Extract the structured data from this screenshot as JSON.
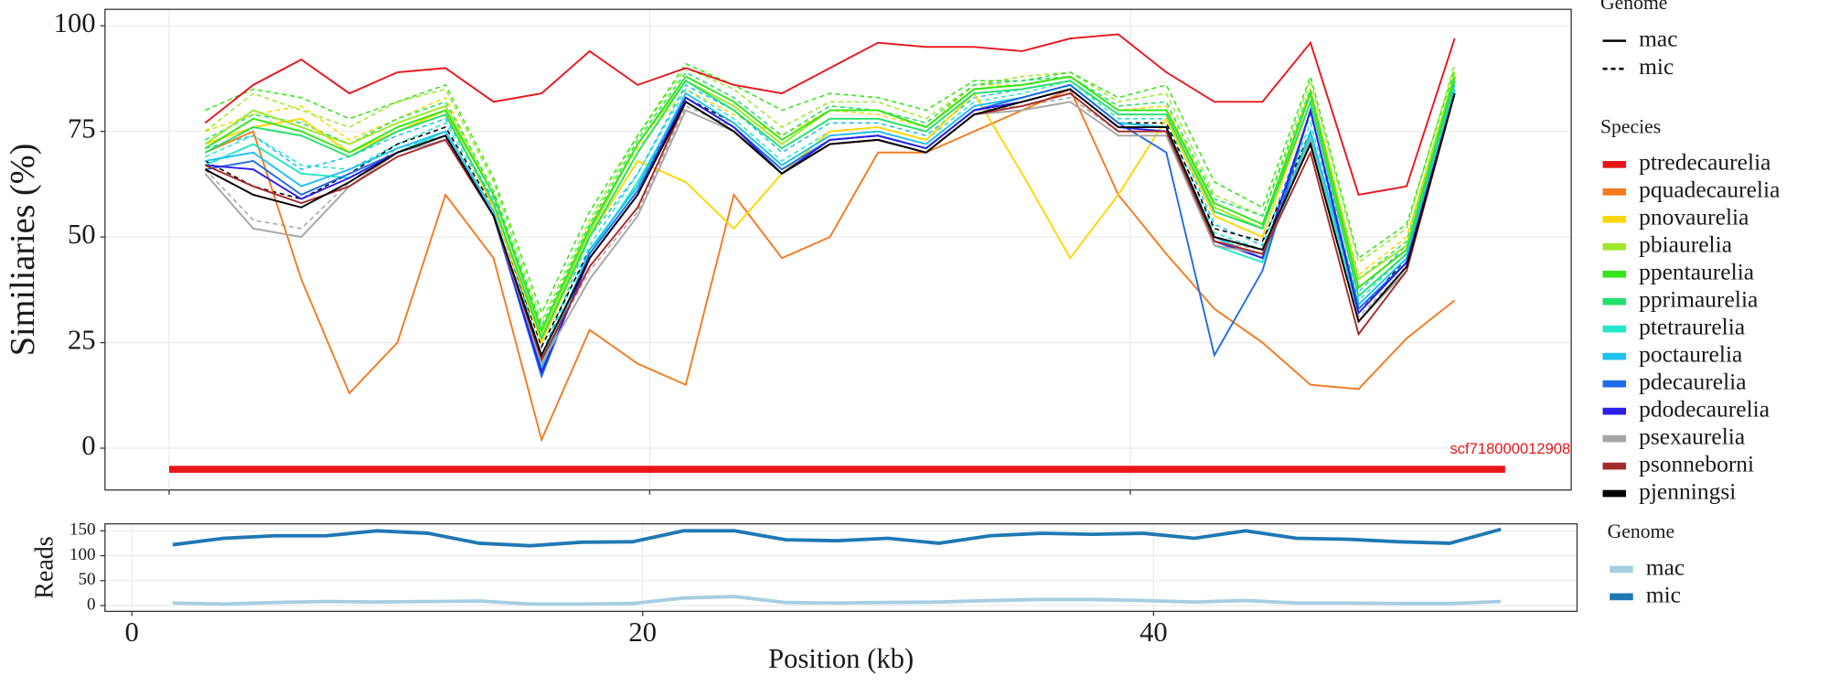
{
  "chart_data": [
    {
      "type": "line",
      "ylabel": "Similiaries (%)",
      "grid": true,
      "xlim": [
        -2.67,
        58.35
      ],
      "ylim": [
        -9.9,
        103.9
      ],
      "yticks": [
        0,
        25,
        50,
        75,
        100
      ],
      "xticks": [
        0,
        20,
        40
      ],
      "show_xtick_labels": false,
      "x": [
        1.5,
        3.5,
        5.5,
        7.5,
        9.5,
        11.5,
        13.5,
        15.5,
        17.5,
        19.5,
        21.5,
        23.5,
        25.5,
        27.5,
        29.5,
        31.5,
        33.5,
        35.5,
        37.5,
        39.5,
        41.5,
        43.5,
        45.5,
        47.5,
        49.5,
        51.5,
        53.5
      ],
      "genome_legend": {
        "title": "Genome",
        "labels": [
          "mac",
          "mic"
        ]
      },
      "legend_title": "Species",
      "annotation": {
        "label": "scf718000012908",
        "start": 0,
        "end": 55.6,
        "y": -5,
        "color": "#e8161b"
      },
      "series": [
        {
          "name": "ptredecaurelia",
          "color": "#e8161b",
          "values": [
            77,
            86,
            92,
            84,
            89,
            90,
            82,
            84,
            94,
            86,
            90,
            86,
            84,
            90,
            96,
            95,
            95,
            94,
            97,
            98,
            89,
            82,
            82,
            96,
            60,
            62,
            97
          ]
        },
        {
          "name": "pquadecaurelia",
          "color": "#f47a20",
          "values": [
            70,
            75,
            40,
            13,
            25,
            60,
            45,
            2,
            28,
            20,
            15,
            60,
            45,
            50,
            70,
            70,
            75,
            80,
            85,
            60,
            46,
            33,
            25,
            15,
            14,
            26,
            35
          ]
        },
        {
          "name": "pnovaurelia",
          "color": "#ffd700",
          "values": [
            72,
            76,
            78,
            70,
            75,
            80,
            57,
            25,
            50,
            68,
            63,
            52,
            65,
            75,
            76,
            73,
            84,
            65,
            45,
            60,
            78,
            55,
            50,
            82,
            38,
            47,
            87
          ],
          "values_mic": [
            75,
            79,
            81,
            73,
            78,
            83,
            60,
            28,
            53,
            71,
            85,
            79,
            74,
            80,
            79,
            76,
            86,
            86,
            88,
            80,
            81,
            58,
            53,
            85,
            41,
            50,
            89
          ]
        },
        {
          "name": "pbiaurelia",
          "color": "#9ee82b",
          "values": [
            72,
            80,
            76,
            72,
            77,
            81,
            60,
            27,
            51,
            72,
            87,
            81,
            72,
            80,
            80,
            76,
            85,
            86,
            88,
            80,
            80,
            57,
            52,
            84,
            40,
            48,
            89
          ],
          "values_mic": [
            75,
            84,
            80,
            76,
            82,
            85,
            63,
            30,
            54,
            74,
            90,
            85,
            76,
            82,
            82,
            78,
            86,
            88,
            89,
            82,
            84,
            60,
            55,
            87,
            44,
            52,
            91
          ]
        },
        {
          "name": "ppentaurelia",
          "color": "#33e51a",
          "values": [
            71,
            78,
            75,
            70,
            76,
            80,
            60,
            28,
            52,
            72,
            88,
            82,
            73,
            80,
            80,
            76,
            85,
            86,
            88,
            80,
            80,
            58,
            53,
            84,
            38,
            47,
            88
          ],
          "values_mic": [
            80,
            85,
            83,
            78,
            82,
            86,
            64,
            32,
            56,
            74,
            91,
            86,
            80,
            84,
            83,
            80,
            87,
            87,
            89,
            83,
            86,
            63,
            57,
            88,
            45,
            53,
            90
          ]
        },
        {
          "name": "pprimaurelia",
          "color": "#22e06a",
          "values": [
            70,
            76,
            74,
            69,
            75,
            79,
            58,
            26,
            50,
            70,
            87,
            80,
            71,
            78,
            78,
            75,
            84,
            85,
            87,
            79,
            79,
            56,
            52,
            82,
            36,
            46,
            87
          ],
          "values_mic": [
            73,
            79,
            77,
            72,
            78,
            82,
            61,
            29,
            53,
            73,
            89,
            83,
            74,
            81,
            80,
            77,
            86,
            87,
            88,
            81,
            82,
            59,
            55,
            85,
            40,
            49,
            89
          ]
        },
        {
          "name": "ptetraurelia",
          "color": "#22e8c8",
          "values": [
            67,
            72,
            65,
            64,
            70,
            75,
            56,
            20,
            46,
            63,
            83,
            76,
            66,
            73,
            74,
            71,
            80,
            83,
            86,
            77,
            76,
            48,
            44,
            74,
            32,
            44,
            85
          ],
          "values_mic": [
            69,
            74,
            67,
            66,
            72,
            77,
            58,
            22,
            48,
            65,
            85,
            78,
            68,
            75,
            76,
            73,
            82,
            84,
            87,
            78,
            78,
            51,
            47,
            77,
            35,
            46,
            86
          ]
        },
        {
          "name": "poctaurelia",
          "color": "#1ec0f0",
          "values": [
            68,
            70,
            62,
            66,
            71,
            75,
            56,
            19,
            47,
            62,
            84,
            77,
            67,
            74,
            75,
            72,
            81,
            83,
            86,
            77,
            76,
            50,
            45,
            75,
            34,
            45,
            85
          ],
          "values_mic": [
            71,
            74,
            66,
            69,
            74,
            78,
            59,
            22,
            50,
            65,
            86,
            80,
            70,
            77,
            77,
            74,
            83,
            85,
            87,
            79,
            79,
            53,
            48,
            79,
            37,
            48,
            86
          ]
        },
        {
          "name": "pdecaurelia",
          "color": "#1f6be8",
          "values": [
            66,
            68,
            60,
            65,
            70,
            74,
            55,
            17,
            46,
            61,
            83,
            76,
            66,
            73,
            74,
            71,
            80,
            83,
            86,
            77,
            70,
            22,
            42,
            80,
            33,
            44,
            84
          ]
        },
        {
          "name": "pdodecaurelia",
          "color": "#2a1ee8",
          "values": [
            67,
            66,
            59,
            64,
            70,
            74,
            55,
            18,
            45,
            60,
            83,
            76,
            65,
            73,
            74,
            71,
            80,
            82,
            85,
            76,
            75,
            49,
            45,
            80,
            32,
            44,
            84
          ]
        },
        {
          "name": "psexaurelia",
          "color": "#a6a6a6",
          "values": [
            65,
            52,
            50,
            62,
            70,
            73,
            55,
            20,
            40,
            55,
            80,
            75,
            65,
            72,
            73,
            70,
            79,
            80,
            82,
            74,
            74,
            48,
            46,
            73,
            30,
            42,
            84
          ],
          "values_mic": [
            66,
            54,
            52,
            63,
            71,
            74,
            56,
            21,
            42,
            56,
            81,
            76,
            66,
            73,
            74,
            71,
            80,
            81,
            83,
            75,
            75,
            49,
            47,
            75,
            31,
            43,
            84
          ]
        },
        {
          "name": "psonneborni",
          "color": "#a52a2a",
          "values": [
            67,
            62,
            58,
            62,
            69,
            73,
            55,
            21,
            43,
            57,
            82,
            75,
            65,
            72,
            73,
            70,
            79,
            81,
            84,
            75,
            75,
            49,
            46,
            70,
            27,
            42,
            84
          ]
        },
        {
          "name": "pjenningsi",
          "color": "#000000",
          "values": [
            66,
            60,
            57,
            63,
            70,
            74,
            55,
            22,
            45,
            60,
            82,
            75,
            65,
            72,
            73,
            70,
            79,
            82,
            85,
            76,
            76,
            50,
            47,
            72,
            30,
            43,
            84
          ],
          "values_mic": [
            68,
            62,
            59,
            65,
            72,
            76,
            57,
            24,
            47,
            62,
            83,
            77,
            67,
            74,
            75,
            72,
            81,
            83,
            86,
            77,
            77,
            52,
            49,
            75,
            32,
            45,
            85
          ]
        }
      ]
    },
    {
      "type": "line",
      "ylabel": "Reads",
      "xlabel": "Position (kb)",
      "grid": true,
      "xlim": [
        -1.05,
        56.58
      ],
      "ylim": [
        -11.7,
        164
      ],
      "yticks": [
        0,
        50,
        100,
        150
      ],
      "xticks": [
        0,
        20,
        40
      ],
      "show_xtick_labels": true,
      "x": [
        1.6,
        3.6,
        5.6,
        7.6,
        9.6,
        11.6,
        13.6,
        15.6,
        17.6,
        19.6,
        21.6,
        23.6,
        25.6,
        27.6,
        29.6,
        31.6,
        33.6,
        35.6,
        37.6,
        39.6,
        41.6,
        43.6,
        45.6,
        47.6,
        49.6,
        51.6,
        53.6
      ],
      "legend_title": "Genome",
      "series": [
        {
          "name": "mac",
          "color": "#a6cee3",
          "values": [
            5,
            3,
            6,
            8,
            7,
            8,
            9,
            3,
            3,
            4,
            15,
            18,
            6,
            5,
            6,
            7,
            10,
            12,
            12,
            10,
            7,
            10,
            5,
            5,
            4,
            4,
            8
          ]
        },
        {
          "name": "mic",
          "color": "#1f78b4",
          "values": [
            122,
            135,
            140,
            140,
            150,
            145,
            125,
            120,
            127,
            128,
            150,
            150,
            132,
            130,
            135,
            125,
            140,
            145,
            143,
            145,
            135,
            150,
            135,
            133,
            128,
            125,
            153
          ]
        }
      ]
    }
  ]
}
